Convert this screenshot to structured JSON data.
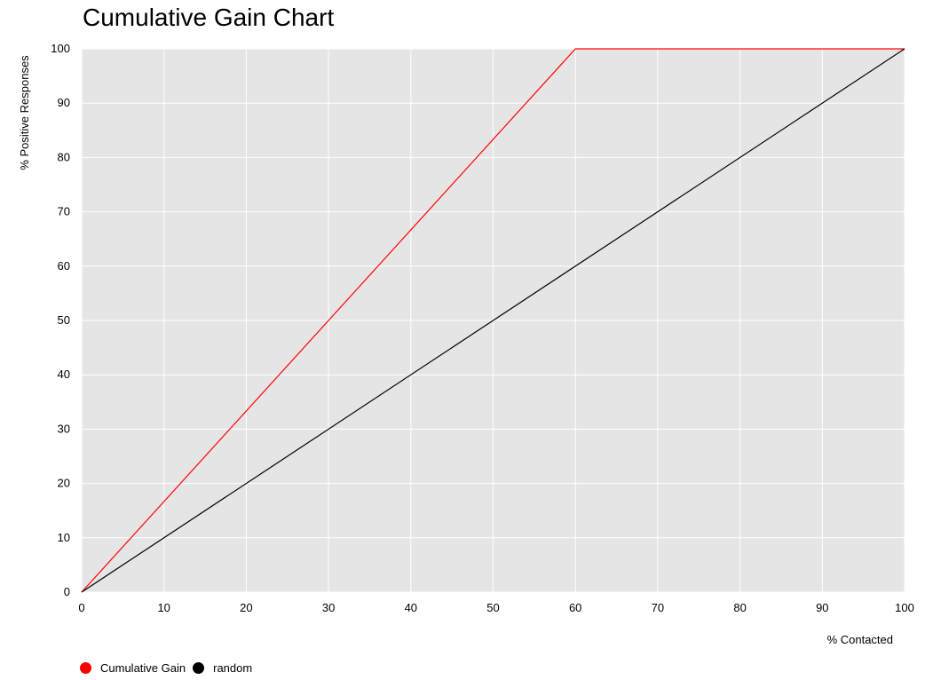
{
  "chart_data": {
    "type": "line",
    "title": "Cumulative Gain Chart",
    "xlabel": "% Contacted",
    "ylabel": "% Positive Responses",
    "xlim": [
      0,
      100
    ],
    "ylim": [
      0,
      100
    ],
    "xticks": [
      0,
      10,
      20,
      30,
      40,
      50,
      60,
      70,
      80,
      90,
      100
    ],
    "yticks": [
      0,
      10,
      20,
      30,
      40,
      50,
      60,
      70,
      80,
      90,
      100
    ],
    "grid": true,
    "background": "#e5e5e5",
    "legend_position": "bottom-left",
    "series": [
      {
        "name": "Cumulative Gain",
        "color": "#ff0000",
        "x": [
          0,
          60,
          100
        ],
        "y": [
          0,
          100,
          100
        ]
      },
      {
        "name": "random",
        "color": "#000000",
        "x": [
          0,
          100
        ],
        "y": [
          0,
          100
        ]
      }
    ]
  }
}
